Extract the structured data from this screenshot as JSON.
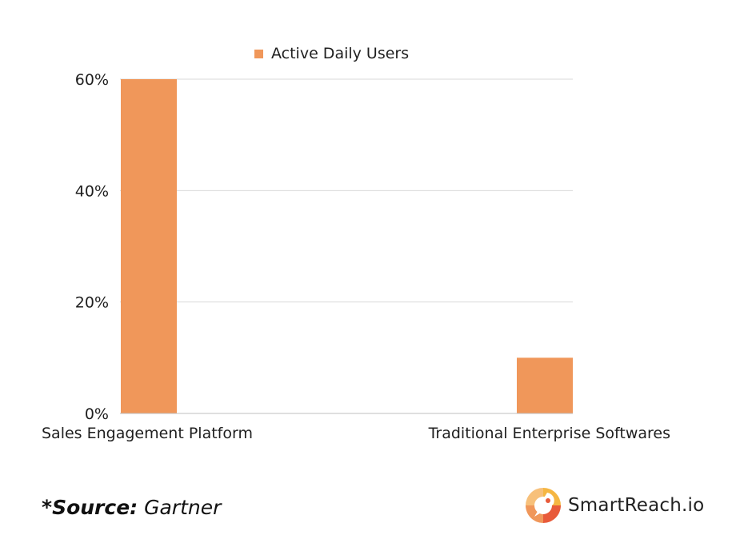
{
  "chart_data": {
    "type": "bar",
    "categories": [
      "Sales Engagement Platform",
      "Traditional  Enterprise Softwares"
    ],
    "series": [
      {
        "name": "Active Daily Users",
        "values": [
          60,
          10
        ]
      }
    ],
    "ylim": [
      0,
      60
    ],
    "yticks": [
      "0%",
      "20%",
      "40%",
      "60%"
    ],
    "ytick_values": [
      0,
      20,
      40,
      60
    ],
    "grid": true,
    "legend": "top-center",
    "bar_color": "#F0975A",
    "grid_color": "#d9d9d9"
  },
  "footer": {
    "source_label": "*Source:",
    "source_value": "Gartner"
  },
  "brand": {
    "name": "SmartReach.io",
    "logo_icon": "rocket-icon",
    "logo_colors": [
      "#F0975A",
      "#E85A3A",
      "#F5B642"
    ]
  }
}
